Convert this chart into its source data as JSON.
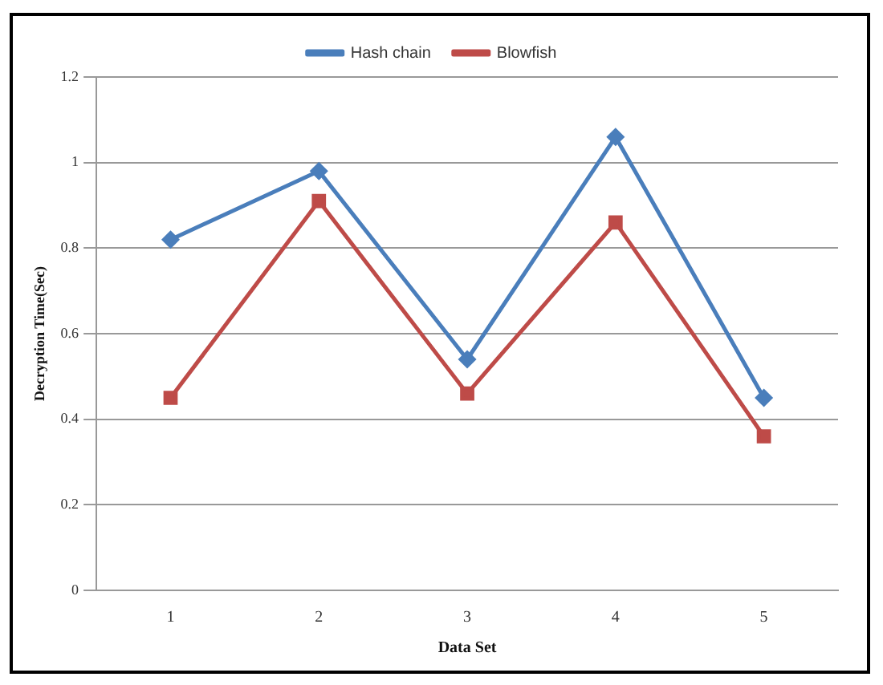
{
  "chart_data": {
    "type": "line",
    "xlabel": "Data Set",
    "ylabel": "Decryption Time(Sec)",
    "categories": [
      "1",
      "2",
      "3",
      "4",
      "5"
    ],
    "series": [
      {
        "name": "Hash chain",
        "color": "#4a7ebb",
        "marker": "diamond",
        "values": [
          0.82,
          0.98,
          0.54,
          1.06,
          0.45
        ]
      },
      {
        "name": "Blowfish",
        "color": "#be4b48",
        "marker": "square",
        "values": [
          0.45,
          0.91,
          0.46,
          0.86,
          0.36
        ]
      }
    ],
    "ylim": [
      0,
      1.2
    ],
    "yticks": [
      0,
      0.2,
      0.4,
      0.6,
      0.8,
      1,
      1.2
    ],
    "grid": "y",
    "legend": "top",
    "line_style": "solid"
  }
}
